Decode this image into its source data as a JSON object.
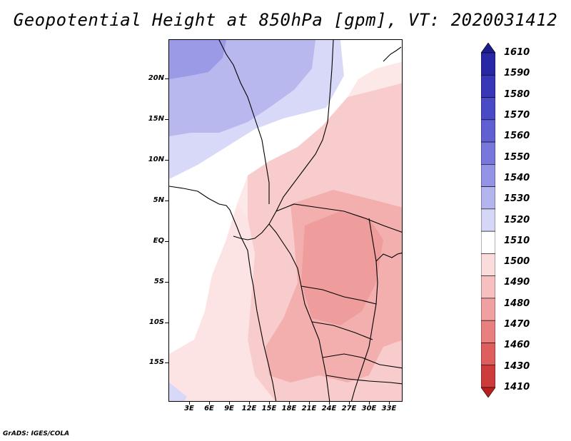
{
  "title": "Geopotential Height at 850hPa [gpm], VT: 2020031412",
  "credit": "GrADS: IGES/COLA",
  "chart_data": {
    "type": "heatmap",
    "variable": "Geopotential Height",
    "level": "850hPa",
    "units": "gpm",
    "valid_time": "2020031412",
    "lat_labels": [
      "20N",
      "15N",
      "10N",
      "5N",
      "EQ",
      "5S",
      "10S",
      "15S"
    ],
    "lon_labels": [
      "3E",
      "6E",
      "9E",
      "12E",
      "15E",
      "18E",
      "21E",
      "24E",
      "27E",
      "30E",
      "33E"
    ],
    "lon_range": [
      0,
      35
    ],
    "lat_range": [
      -20,
      25
    ],
    "colorbar": {
      "levels": [
        "1610",
        "1590",
        "1580",
        "1570",
        "1560",
        "1550",
        "1540",
        "1530",
        "1520",
        "1510",
        "1500",
        "1490",
        "1480",
        "1470",
        "1460",
        "1430",
        "1410"
      ],
      "colors": [
        "#1d1d8e",
        "#2828a6",
        "#3737b8",
        "#4a4ac6",
        "#6060d2",
        "#7878dc",
        "#9494e6",
        "#b4b4ee",
        "#d6d6f6",
        "#ffffff",
        "#fbdcdc",
        "#f6c0c0",
        "#f0a0a0",
        "#e88080",
        "#de5e5e",
        "#cc3c3c",
        "#b82020"
      ]
    },
    "regions": [
      {
        "name": "north-blue-max",
        "value_range": [
          1540,
          1550
        ],
        "color": "#9a9ae6"
      },
      {
        "name": "north-blue-mid",
        "value_range": [
          1530,
          1540
        ],
        "color": "#b8b8ee"
      },
      {
        "name": "north-blue-low",
        "value_range": [
          1520,
          1530
        ],
        "color": "#d8d8f8"
      },
      {
        "name": "central-white",
        "value_range": [
          1510,
          1520
        ],
        "color": "#ffffff"
      },
      {
        "name": "south-pink-light",
        "value_range": [
          1500,
          1510
        ],
        "color": "#fde4e4"
      },
      {
        "name": "central-pink",
        "value_range": [
          1490,
          1500
        ],
        "color": "#f6c4c4"
      },
      {
        "name": "congo-low",
        "value_range": [
          1480,
          1490
        ],
        "color": "#f0a6a6"
      }
    ]
  }
}
